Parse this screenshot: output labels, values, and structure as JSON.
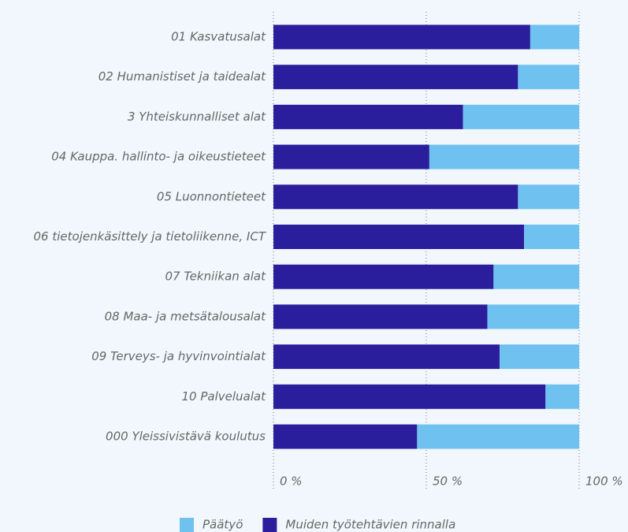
{
  "chart_data": {
    "type": "stacked-bar-horizontal",
    "categories": [
      "01 Kasvatusalat",
      "02 Humanistiset ja taidealat",
      "3 Yhteiskunnalliset alat",
      "04 Kauppa. hallinto- ja oikeustieteet",
      "05 Luonnontieteet",
      "06 tietojenkäsittely ja tietoliikenne, ICT",
      "07 Tekniikan alat",
      "08 Maa- ja metsätalousalat",
      "09 Terveys- ja hyvinvointialat",
      "10 Palvelualat",
      "000 Yleissivistävä koulutus"
    ],
    "series": [
      {
        "name": "Päätyö",
        "color": "#6fc1f0",
        "values": [
          16,
          20,
          38,
          49,
          20,
          18,
          28,
          30,
          26,
          11,
          53
        ]
      },
      {
        "name": "Muiden työtehtävien rinnalla",
        "color": "#2a1e9c",
        "values": [
          84,
          80,
          62,
          51,
          80,
          82,
          72,
          70,
          74,
          89,
          47
        ]
      }
    ],
    "xlim": [
      0,
      100
    ],
    "xticks": [
      {
        "value": 0,
        "label": "0 %"
      },
      {
        "value": 50,
        "label": "50 %"
      },
      {
        "value": 100,
        "label": "100 %"
      }
    ],
    "grid": true,
    "legend": "bottom"
  }
}
